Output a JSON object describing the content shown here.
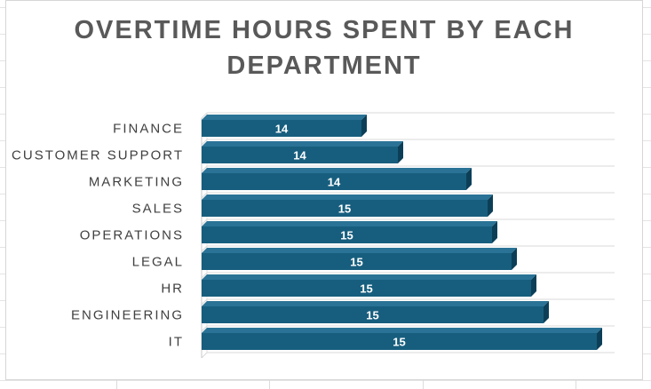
{
  "chart_data": {
    "type": "bar",
    "orientation": "horizontal",
    "title_lines": [
      "OVERTIME HOURS SPENT BY EACH",
      "DEPARTMENT"
    ],
    "categories": [
      "FINANCE",
      "CUSTOMER SUPPORT",
      "MARKETING",
      "SALES",
      "OPERATIONS",
      "LEGAL",
      "HR",
      "ENGINEERING",
      "IT"
    ],
    "values": [
      14,
      14,
      14,
      15,
      15,
      15,
      15,
      15,
      15
    ],
    "bar_lengths": [
      0.404,
      0.496,
      0.669,
      0.723,
      0.735,
      0.784,
      0.834,
      0.865,
      1.0
    ],
    "xlabel": "",
    "ylabel": "",
    "grid": true,
    "legend": "none",
    "style": "3d-bar"
  },
  "colors": {
    "bar_front": "#175e7e",
    "bar_top": "#2a7396",
    "bar_side": "#0c3f57",
    "title": "#595959",
    "label": "#404040",
    "gridline": "#d9d9d9"
  }
}
